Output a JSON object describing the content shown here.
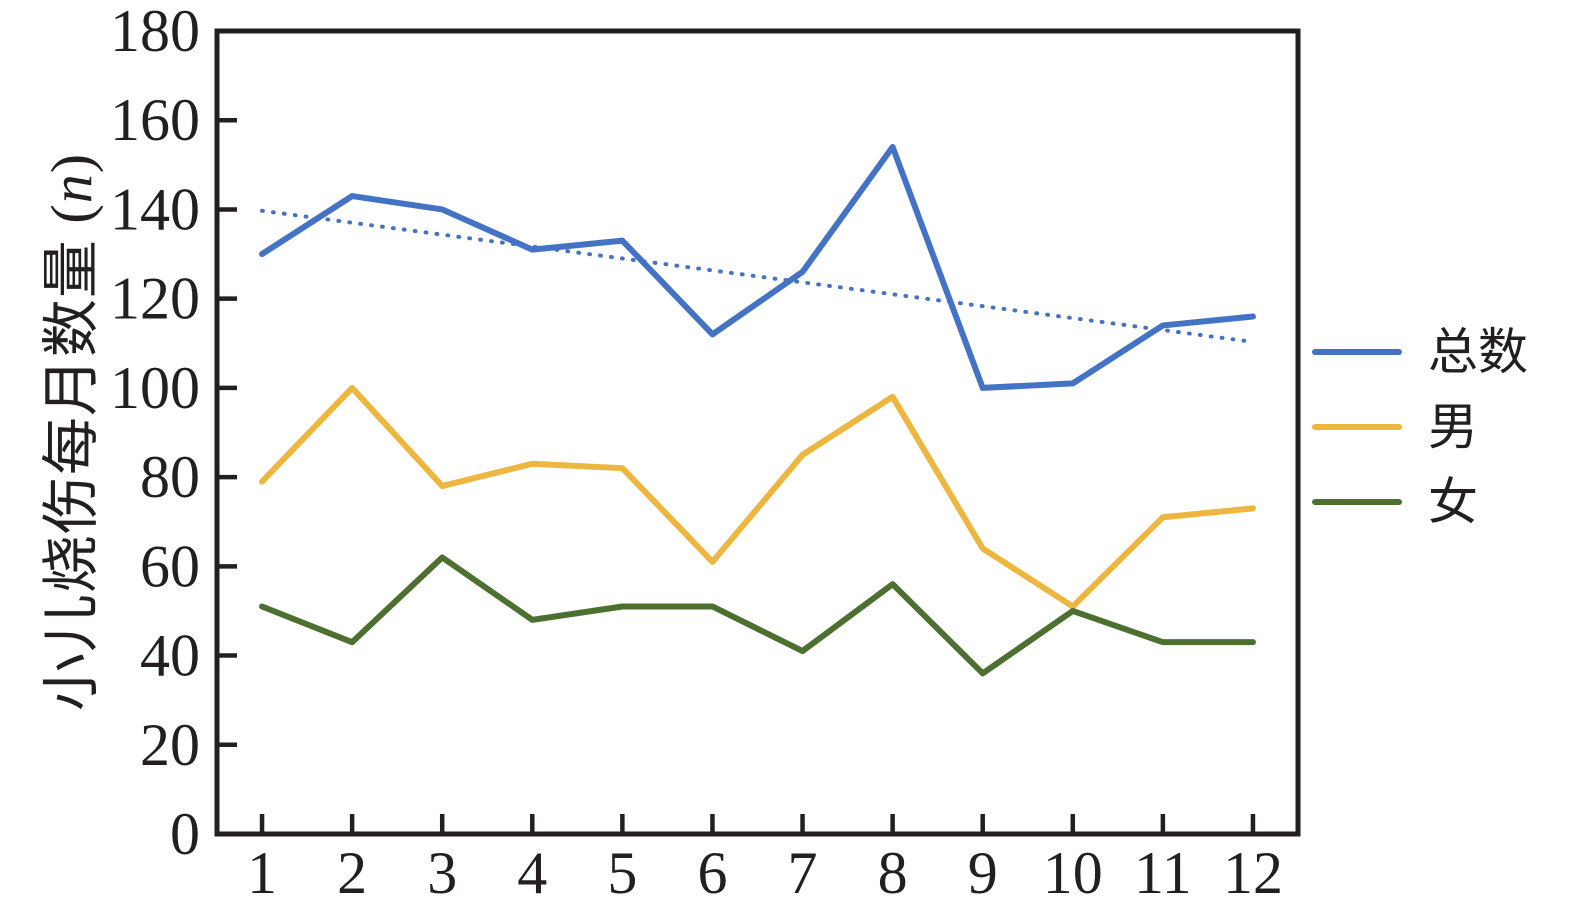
{
  "page": {
    "background": "#FFFFFF"
  },
  "colors": {
    "axis": "#231F20",
    "total_line": "#4472C4",
    "male_line": "#EDB63F",
    "female_line": "#4D7030",
    "trendline": "#4472C4"
  },
  "axes": {
    "y_label": "小儿烧伤每月数量 (n)",
    "y_label_parts": {
      "main": "小儿烧伤每月数量 (",
      "variable": "n",
      "close": ")"
    },
    "y_ticks": [
      "0",
      "20",
      "40",
      "60",
      "80",
      "100",
      "120",
      "140",
      "160",
      "180"
    ],
    "x_ticks": [
      "1",
      "2",
      "3",
      "4",
      "5",
      "6",
      "7",
      "8",
      "9",
      "10",
      "11",
      "12"
    ]
  },
  "legend": {
    "items": [
      "总数",
      "男",
      "女"
    ]
  },
  "chart_data": {
    "type": "line",
    "title": "",
    "xlabel": "",
    "ylabel": "小儿烧伤每月数量 (n)",
    "ylim": [
      0,
      180
    ],
    "y_tick_step": 20,
    "x": [
      1,
      2,
      3,
      4,
      5,
      6,
      7,
      8,
      9,
      10,
      11,
      12
    ],
    "grid": false,
    "legend_position": "right-outside",
    "series": [
      {
        "key": "total",
        "name": "总数",
        "color": "#4472C4",
        "style": "solid",
        "values": [
          130,
          143,
          140,
          131,
          133,
          112,
          126,
          154,
          100,
          101,
          114,
          116
        ]
      },
      {
        "key": "male",
        "name": "男",
        "color": "#EDB63F",
        "style": "solid",
        "values": [
          79,
          100,
          78,
          83,
          82,
          61,
          85,
          98,
          64,
          51,
          71,
          73
        ]
      },
      {
        "key": "female",
        "name": "女",
        "color": "#4D7030",
        "style": "solid",
        "values": [
          51,
          43,
          62,
          48,
          51,
          51,
          41,
          56,
          36,
          50,
          43,
          43
        ]
      }
    ],
    "trendline": {
      "for_series": "总数",
      "style": "dotted",
      "color": "#4472C4",
      "start_value": 139.7,
      "end_value": 110.3
    }
  }
}
